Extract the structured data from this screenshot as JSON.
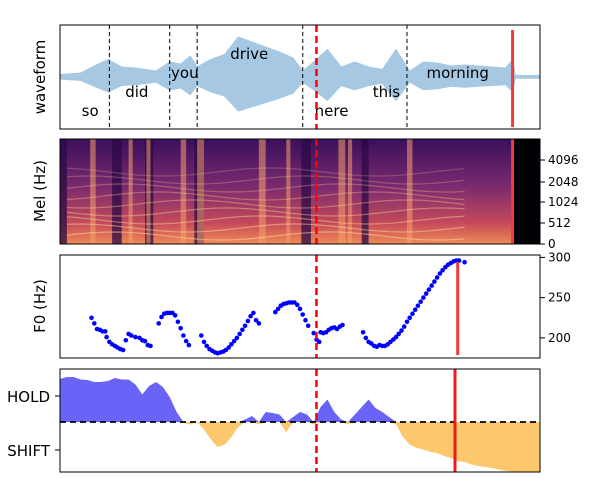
{
  "chart_data": [
    {
      "type": "area",
      "ylabel": "waveform",
      "words": [
        {
          "text": "so",
          "t": 0.22,
          "row": "bottom"
        },
        {
          "text": "did",
          "t": 0.56,
          "row": "mid"
        },
        {
          "text": "you",
          "t": 0.91,
          "row": "upper"
        },
        {
          "text": "drive",
          "t": 1.38,
          "row": "top"
        },
        {
          "text": "here",
          "t": 1.98,
          "row": "bottom"
        },
        {
          "text": "this",
          "t": 2.38,
          "row": "mid"
        },
        {
          "text": "morning",
          "t": 2.9,
          "row": "upper"
        }
      ],
      "word_boundaries": [
        0.36,
        0.8,
        1.0,
        1.77,
        2.53
      ],
      "wave_envelope": {
        "t": [
          0.0,
          0.15,
          0.25,
          0.35,
          0.45,
          0.55,
          0.7,
          0.8,
          0.88,
          0.95,
          1.0,
          1.1,
          1.2,
          1.3,
          1.4,
          1.5,
          1.6,
          1.7,
          1.77,
          1.85,
          1.95,
          2.05,
          2.15,
          2.25,
          2.35,
          2.45,
          2.55,
          2.65,
          2.75,
          2.85,
          2.95,
          3.05,
          3.15,
          3.25,
          3.3,
          3.32,
          3.5
        ],
        "amp": [
          0.05,
          0.08,
          0.22,
          0.35,
          0.2,
          0.18,
          0.12,
          0.3,
          0.26,
          0.42,
          0.2,
          0.35,
          0.45,
          0.8,
          0.7,
          0.6,
          0.5,
          0.38,
          0.12,
          0.3,
          0.55,
          0.2,
          0.3,
          0.2,
          0.15,
          0.55,
          0.12,
          0.3,
          0.28,
          0.22,
          0.24,
          0.22,
          0.2,
          0.18,
          0.35,
          0.03,
          0.03
        ]
      },
      "markers": {
        "dashed_red_t": 1.87,
        "solid_red_t": 3.3
      }
    },
    {
      "type": "heatmap",
      "ylabel": "Mel (Hz)",
      "yticks": [
        0,
        512,
        1024,
        2048,
        4096
      ]
    },
    {
      "type": "scatter",
      "ylabel": "F0 (Hz)",
      "yticks": [
        200,
        250,
        300
      ],
      "ylim": [
        175,
        303
      ],
      "series_color": "#0000ff",
      "points": [
        [
          0.23,
          225
        ],
        [
          0.25,
          218
        ],
        [
          0.27,
          211
        ],
        [
          0.29,
          210
        ],
        [
          0.31,
          208
        ],
        [
          0.33,
          208
        ],
        [
          0.34,
          201
        ],
        [
          0.36,
          195
        ],
        [
          0.38,
          192
        ],
        [
          0.4,
          190
        ],
        [
          0.42,
          188
        ],
        [
          0.44,
          186
        ],
        [
          0.46,
          185
        ],
        [
          0.48,
          197
        ],
        [
          0.5,
          205
        ],
        [
          0.52,
          203
        ],
        [
          0.55,
          201
        ],
        [
          0.58,
          200
        ],
        [
          0.6,
          197
        ],
        [
          0.62,
          196
        ],
        [
          0.64,
          191
        ],
        [
          0.66,
          190
        ],
        [
          0.72,
          218
        ],
        [
          0.74,
          226
        ],
        [
          0.76,
          230
        ],
        [
          0.78,
          231
        ],
        [
          0.8,
          231
        ],
        [
          0.82,
          231
        ],
        [
          0.84,
          228
        ],
        [
          0.86,
          220
        ],
        [
          0.88,
          212
        ],
        [
          0.9,
          203
        ],
        [
          0.92,
          196
        ],
        [
          0.94,
          191
        ],
        [
          1.03,
          203
        ],
        [
          1.05,
          195
        ],
        [
          1.07,
          190
        ],
        [
          1.09,
          186
        ],
        [
          1.11,
          184
        ],
        [
          1.13,
          182
        ],
        [
          1.15,
          181
        ],
        [
          1.17,
          182
        ],
        [
          1.19,
          183
        ],
        [
          1.21,
          185
        ],
        [
          1.23,
          188
        ],
        [
          1.25,
          192
        ],
        [
          1.27,
          196
        ],
        [
          1.29,
          200
        ],
        [
          1.31,
          205
        ],
        [
          1.33,
          210
        ],
        [
          1.35,
          215
        ],
        [
          1.37,
          221
        ],
        [
          1.39,
          227
        ],
        [
          1.41,
          231
        ],
        [
          1.43,
          222
        ],
        [
          1.45,
          218
        ],
        [
          1.57,
          232
        ],
        [
          1.59,
          236
        ],
        [
          1.61,
          240
        ],
        [
          1.63,
          242
        ],
        [
          1.65,
          243
        ],
        [
          1.67,
          244
        ],
        [
          1.69,
          244
        ],
        [
          1.71,
          244
        ],
        [
          1.73,
          241
        ],
        [
          1.75,
          236
        ],
        [
          1.77,
          229
        ],
        [
          1.79,
          222
        ],
        [
          1.81,
          215
        ],
        [
          1.85,
          206
        ],
        [
          1.87,
          198
        ],
        [
          1.89,
          195
        ],
        [
          1.9,
          207
        ],
        [
          1.92,
          206
        ],
        [
          1.94,
          207
        ],
        [
          1.96,
          210
        ],
        [
          1.98,
          212
        ],
        [
          2.0,
          213
        ],
        [
          2.02,
          211
        ],
        [
          2.04,
          214
        ],
        [
          2.06,
          216
        ],
        [
          2.21,
          207
        ],
        [
          2.23,
          200
        ],
        [
          2.25,
          195
        ],
        [
          2.27,
          193
        ],
        [
          2.29,
          190
        ],
        [
          2.31,
          189
        ],
        [
          2.33,
          191
        ],
        [
          2.35,
          190
        ],
        [
          2.37,
          190
        ],
        [
          2.39,
          192
        ],
        [
          2.41,
          195
        ],
        [
          2.43,
          198
        ],
        [
          2.45,
          201
        ],
        [
          2.47,
          205
        ],
        [
          2.49,
          209
        ],
        [
          2.51,
          214
        ],
        [
          2.53,
          220
        ],
        [
          2.55,
          225
        ],
        [
          2.57,
          230
        ],
        [
          2.59,
          235
        ],
        [
          2.61,
          240
        ],
        [
          2.63,
          245
        ],
        [
          2.65,
          250
        ],
        [
          2.67,
          255
        ],
        [
          2.69,
          260
        ],
        [
          2.71,
          265
        ],
        [
          2.73,
          270
        ],
        [
          2.75,
          275
        ],
        [
          2.77,
          280
        ],
        [
          2.79,
          284
        ],
        [
          2.81,
          288
        ],
        [
          2.83,
          291
        ],
        [
          2.85,
          293
        ],
        [
          2.87,
          295
        ],
        [
          2.89,
          296
        ],
        [
          2.91,
          296
        ],
        [
          2.95,
          294
        ]
      ]
    },
    {
      "type": "area",
      "yticklabels": [
        "HOLD",
        "SHIFT"
      ],
      "ylim": [
        -1.0,
        1.0
      ],
      "hold_color": "#6a63f7",
      "shift_color": "#fdc86d",
      "t": [
        0.0,
        0.05,
        0.1,
        0.15,
        0.2,
        0.25,
        0.3,
        0.35,
        0.4,
        0.45,
        0.5,
        0.55,
        0.6,
        0.65,
        0.7,
        0.75,
        0.8,
        0.85,
        0.9,
        0.95,
        1.0,
        1.05,
        1.1,
        1.15,
        1.2,
        1.25,
        1.3,
        1.35,
        1.4,
        1.45,
        1.5,
        1.55,
        1.6,
        1.65,
        1.7,
        1.75,
        1.8,
        1.85,
        1.9,
        1.95,
        2.0,
        2.05,
        2.1,
        2.15,
        2.2,
        2.25,
        2.3,
        2.35,
        2.4,
        2.45,
        2.5,
        2.55,
        2.6,
        2.65,
        2.7,
        2.75,
        2.8,
        2.85,
        2.9,
        2.95,
        3.0,
        3.05,
        3.1,
        3.15,
        3.2,
        3.25,
        3.3,
        3.35,
        3.4,
        3.45,
        3.5
      ],
      "values": [
        0.86,
        0.9,
        0.9,
        0.85,
        0.84,
        0.8,
        0.8,
        0.82,
        0.88,
        0.85,
        0.85,
        0.75,
        0.55,
        0.72,
        0.8,
        0.7,
        0.5,
        0.2,
        -0.02,
        -0.05,
        0.0,
        -0.15,
        -0.35,
        -0.5,
        -0.45,
        -0.3,
        -0.1,
        0.05,
        0.12,
        -0.05,
        0.2,
        0.18,
        0.15,
        -0.2,
        0.1,
        0.2,
        0.15,
        -0.05,
        0.3,
        0.45,
        0.2,
        0.05,
        -0.05,
        0.15,
        0.3,
        0.45,
        0.28,
        0.2,
        0.1,
        -0.05,
        -0.3,
        -0.45,
        -0.52,
        -0.55,
        -0.6,
        -0.62,
        -0.68,
        -0.72,
        -0.78,
        -0.8,
        -0.85,
        -0.88,
        -0.9,
        -0.92,
        -0.95,
        -0.98,
        -0.99,
        -1.0,
        -1.0,
        -1.0,
        -1.0
      ],
      "markers": {
        "dashed_red_t": 1.87,
        "solid_red_t": 2.9
      },
      "zero_line": "dashed"
    }
  ]
}
